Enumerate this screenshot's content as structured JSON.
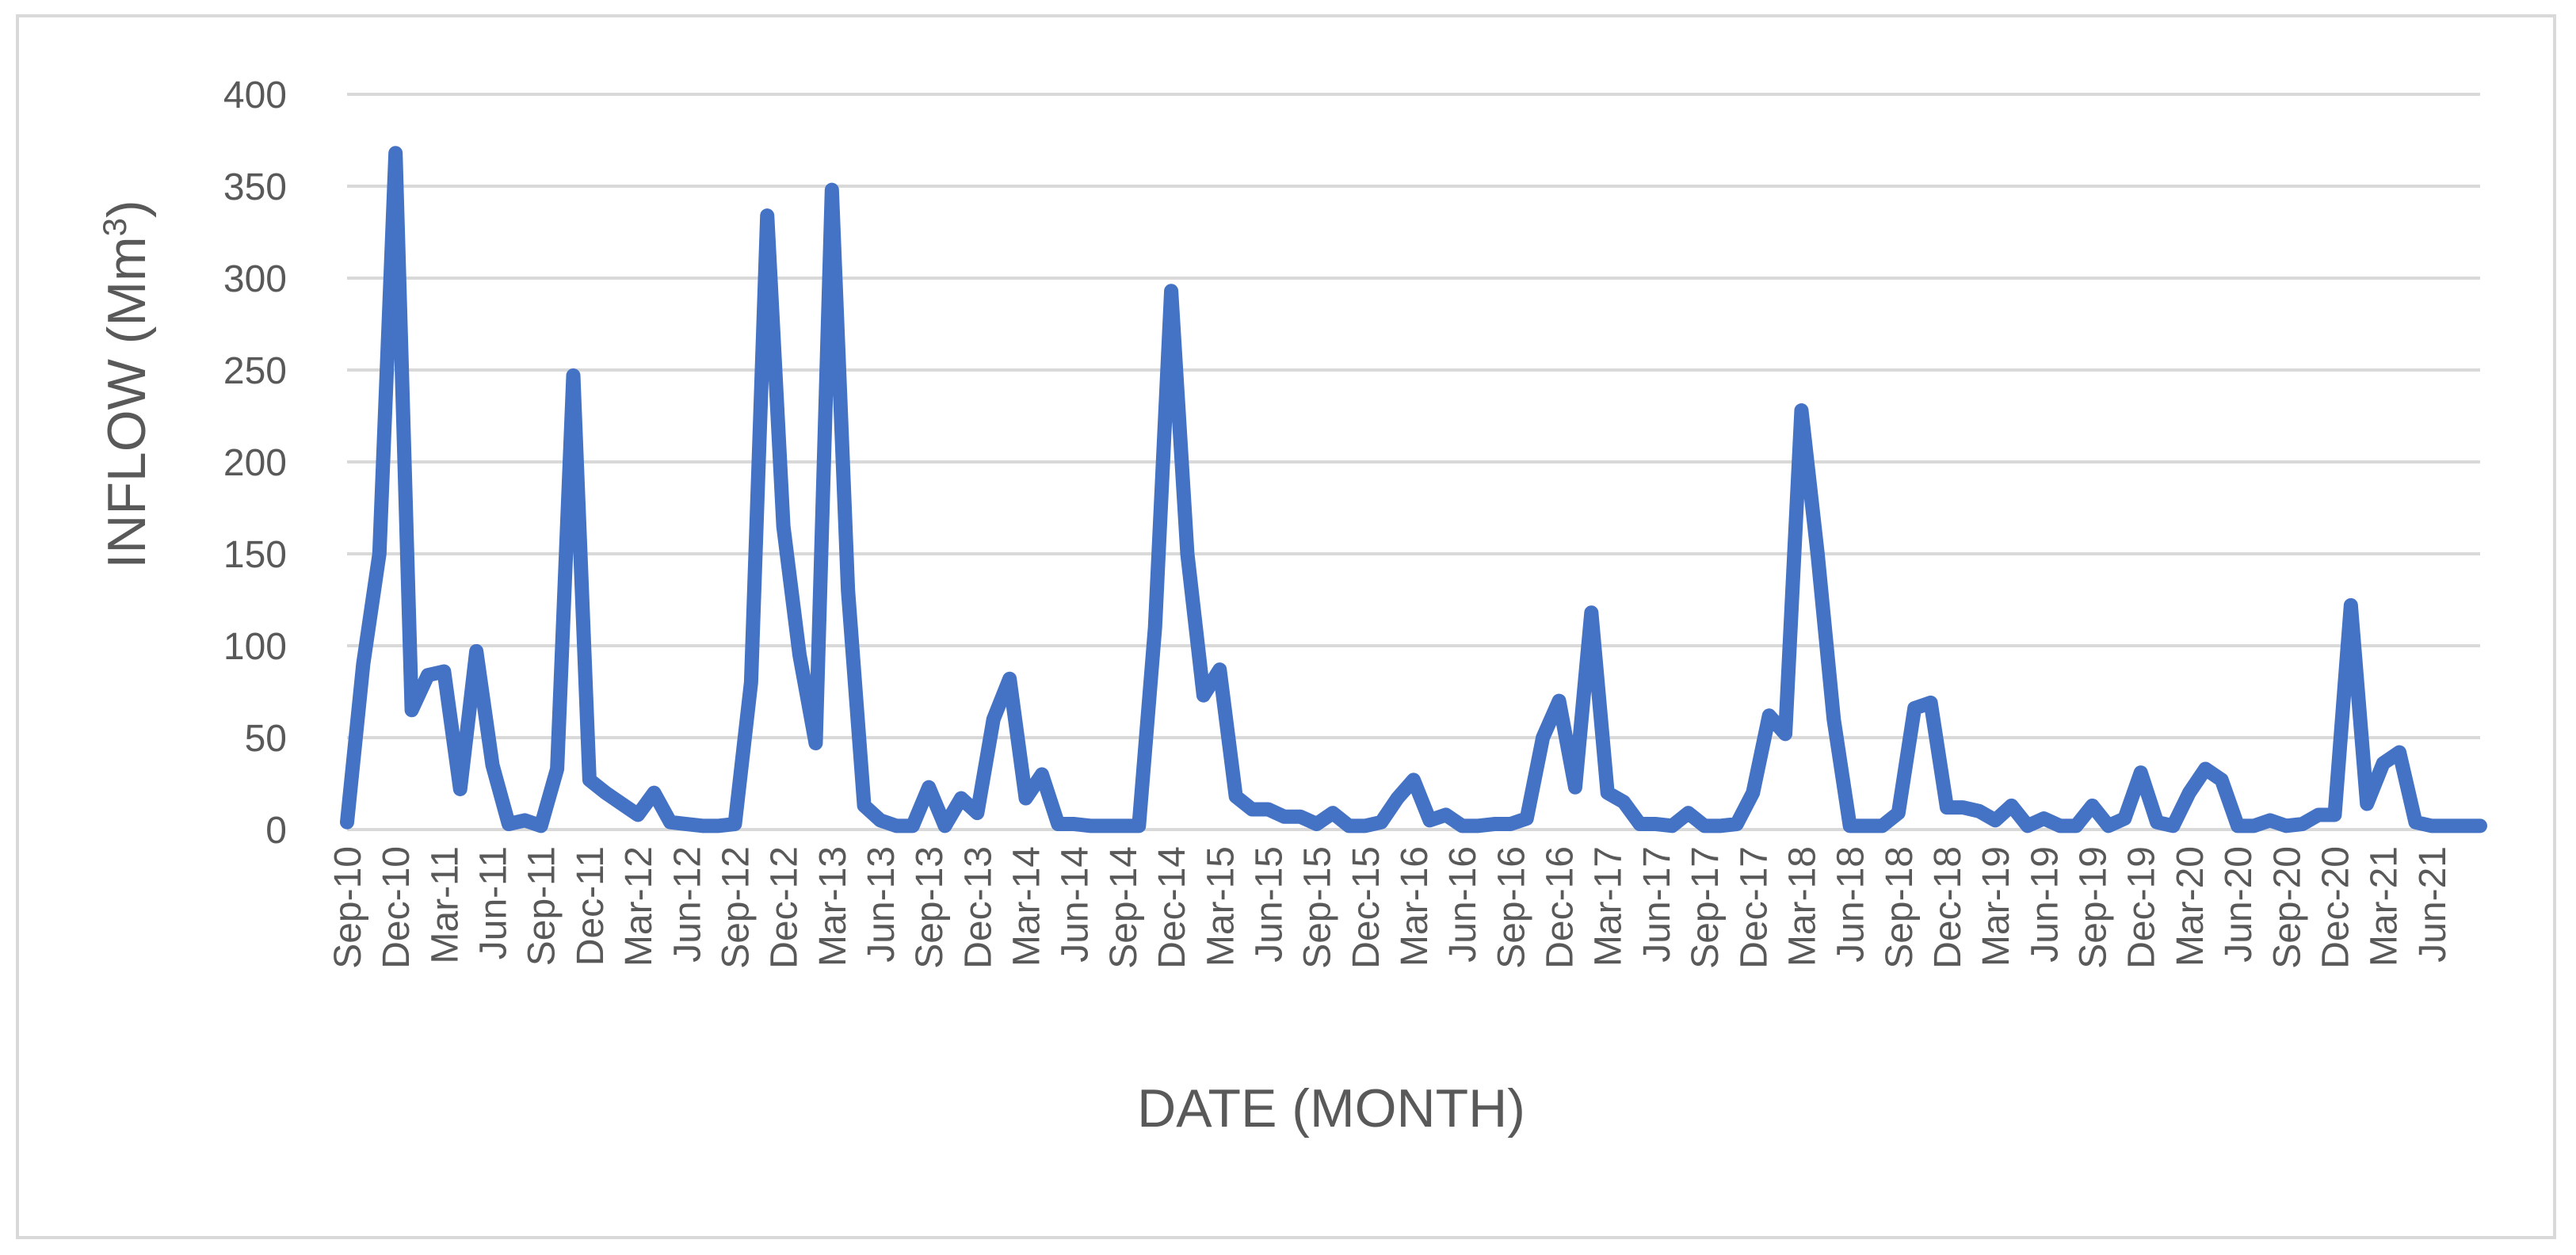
{
  "chart_data": {
    "type": "line",
    "title": "",
    "xlabel": "DATE (MONTH)",
    "ylabel_main": "INFLOW (Mm",
    "ylabel_sup": "3",
    "ylabel_end": ")",
    "ylim": [
      0,
      400
    ],
    "yticks": [
      "0",
      "50",
      "100",
      "150",
      "200",
      "250",
      "300",
      "350",
      "400"
    ],
    "grid": true,
    "legend": "none",
    "color": "#4472c4",
    "xticks": [
      "Sep-10",
      "Dec-10",
      "Mar-11",
      "Jun-11",
      "Sep-11",
      "Dec-11",
      "Mar-12",
      "Jun-12",
      "Sep-12",
      "Dec-12",
      "Mar-13",
      "Jun-13",
      "Sep-13",
      "Dec-13",
      "Mar-14",
      "Jun-14",
      "Sep-14",
      "Dec-14",
      "Mar-15",
      "Jun-15",
      "Sep-15",
      "Dec-15",
      "Mar-16",
      "Jun-16",
      "Sep-16",
      "Dec-16",
      "Mar-17",
      "Jun-17",
      "Sep-17",
      "Dec-17",
      "Mar-18",
      "Jun-18",
      "Sep-18",
      "Dec-18",
      "Mar-19",
      "Jun-19",
      "Sep-19",
      "Dec-19",
      "Mar-20",
      "Jun-20",
      "Sep-20",
      "Dec-20",
      "Mar-21",
      "Jun-21"
    ],
    "series": [
      {
        "values": [
          4,
          90,
          150,
          368,
          65,
          84,
          86,
          22,
          97,
          35,
          3,
          5,
          2,
          33,
          247,
          27,
          20,
          14,
          8,
          20,
          4,
          3,
          2,
          2,
          3,
          80,
          334,
          165,
          95,
          47,
          348,
          130,
          13,
          5,
          2,
          2,
          23,
          2,
          17,
          9,
          60,
          82,
          17,
          30,
          3,
          3,
          2,
          2,
          2,
          2,
          110,
          293,
          150,
          73,
          87,
          18,
          11,
          11,
          7,
          7,
          3,
          9,
          2,
          2,
          4,
          17,
          27,
          5,
          8,
          2,
          2,
          3,
          3,
          6,
          50,
          70,
          23,
          118,
          20,
          15,
          3,
          3,
          2,
          9,
          2,
          2,
          3,
          20,
          62,
          52,
          228,
          150,
          60,
          2,
          2,
          2,
          9,
          66,
          69,
          12,
          12,
          10,
          5,
          13,
          2,
          6,
          2,
          2,
          13,
          2,
          6,
          31,
          4,
          2,
          20,
          33,
          27,
          2,
          2,
          5,
          2,
          3,
          8,
          8,
          122,
          14,
          36,
          42,
          4,
          2,
          2,
          2,
          2
        ]
      }
    ]
  }
}
